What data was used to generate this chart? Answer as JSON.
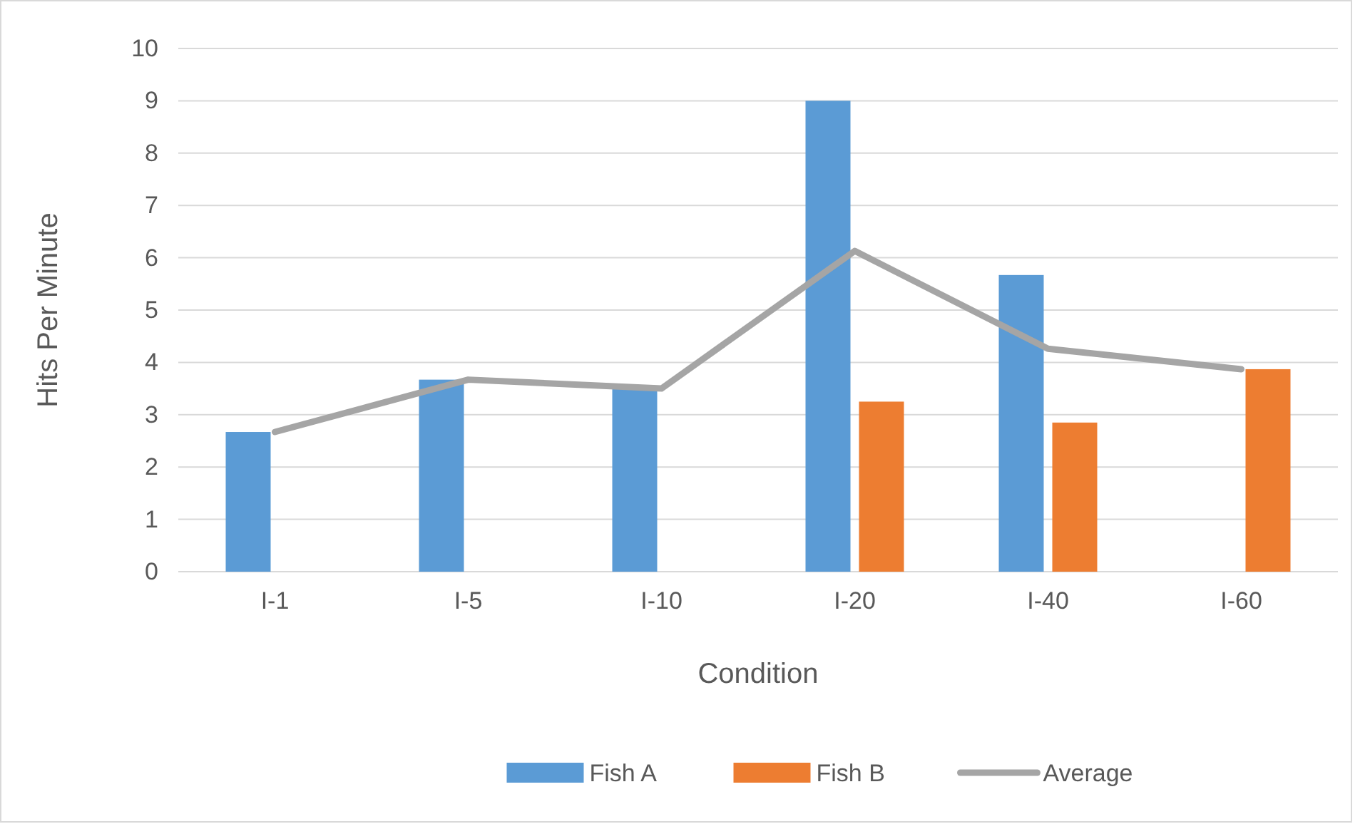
{
  "chart_data": {
    "type": "bar",
    "xlabel": "Condition",
    "ylabel": "Hits Per Minute",
    "categories": [
      "I-1",
      "I-5",
      "I-10",
      "I-20",
      "I-40",
      "I-60"
    ],
    "series": [
      {
        "name": "Fish A",
        "color": "#5b9bd5",
        "values": [
          2.67,
          3.67,
          3.5,
          9,
          5.67,
          null
        ]
      },
      {
        "name": "Fish B",
        "color": "#ed7d31",
        "values": [
          null,
          null,
          null,
          3.25,
          2.85,
          3.87
        ]
      },
      {
        "name": "Average",
        "type": "line",
        "color": "#a5a5a5",
        "values": [
          2.67,
          3.67,
          3.5,
          6.13,
          4.26,
          3.87
        ]
      }
    ],
    "ylim": [
      0,
      10
    ],
    "yticks": [
      0,
      1,
      2,
      3,
      4,
      5,
      6,
      7,
      8,
      9,
      10
    ],
    "grid": "y",
    "legend": "bottom",
    "marker": "none",
    "line_style": "solid"
  }
}
